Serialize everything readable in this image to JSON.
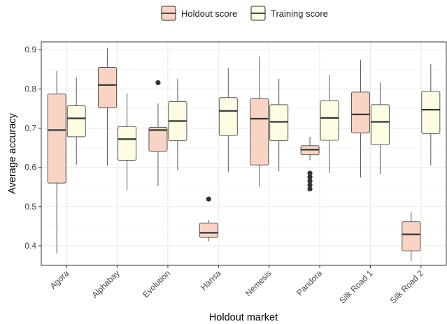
{
  "chart_data": {
    "type": "box",
    "xlabel": "Holdout market",
    "ylabel": "Average accuracy",
    "ylim": [
      0.35,
      0.92
    ],
    "yticks": [
      0.4,
      0.5,
      0.6,
      0.7,
      0.8,
      0.9
    ],
    "ytick_labels": [
      "0.4",
      "0.5",
      "0.6",
      "0.7",
      "0.8",
      "0.9"
    ],
    "grid": true,
    "legend_position": "top",
    "categories": [
      "Agora",
      "Alphabay",
      "Evolution",
      "Hansa",
      "Nemesis",
      "Pandora",
      "Silk Road 1",
      "Silk Road 2"
    ],
    "series": [
      {
        "name": "Holdout score",
        "fill": "#f9d4c5",
        "boxes": [
          {
            "min": 0.38,
            "q1": 0.56,
            "median": 0.695,
            "q3": 0.787,
            "max": 0.846,
            "outliers": []
          },
          {
            "min": 0.604,
            "q1": 0.752,
            "median": 0.81,
            "q3": 0.855,
            "max": 0.905,
            "outliers": []
          },
          {
            "min": 0.553,
            "q1": 0.641,
            "median": 0.695,
            "q3": 0.702,
            "max": 0.763,
            "outliers": [
              0.816
            ]
          },
          {
            "min": 0.412,
            "q1": 0.421,
            "median": 0.433,
            "q3": 0.458,
            "max": 0.466,
            "outliers": [
              0.519
            ]
          },
          {
            "min": 0.551,
            "q1": 0.606,
            "median": 0.724,
            "q3": 0.775,
            "max": 0.883,
            "outliers": []
          },
          {
            "min": 0.618,
            "q1": 0.632,
            "median": 0.645,
            "q3": 0.655,
            "max": 0.678,
            "outliers": [
              0.585,
              0.575,
              0.565,
              0.555,
              0.545
            ]
          },
          {
            "min": 0.574,
            "q1": 0.688,
            "median": 0.735,
            "q3": 0.792,
            "max": 0.874,
            "outliers": []
          },
          {
            "min": 0.361,
            "q1": 0.387,
            "median": 0.429,
            "q3": 0.461,
            "max": 0.486,
            "outliers": []
          }
        ]
      },
      {
        "name": "Training score",
        "fill": "#fefde3",
        "boxes": [
          {
            "min": 0.607,
            "q1": 0.678,
            "median": 0.725,
            "q3": 0.757,
            "max": 0.83,
            "outliers": []
          },
          {
            "min": 0.541,
            "q1": 0.618,
            "median": 0.672,
            "q3": 0.704,
            "max": 0.789,
            "outliers": []
          },
          {
            "min": 0.592,
            "q1": 0.668,
            "median": 0.718,
            "q3": 0.768,
            "max": 0.826,
            "outliers": []
          },
          {
            "min": 0.588,
            "q1": 0.681,
            "median": 0.744,
            "q3": 0.778,
            "max": 0.853,
            "outliers": []
          },
          {
            "min": 0.59,
            "q1": 0.668,
            "median": 0.716,
            "q3": 0.76,
            "max": 0.826,
            "outliers": []
          },
          {
            "min": 0.586,
            "q1": 0.669,
            "median": 0.726,
            "q3": 0.77,
            "max": 0.835,
            "outliers": []
          },
          {
            "min": 0.583,
            "q1": 0.658,
            "median": 0.716,
            "q3": 0.76,
            "max": 0.817,
            "outliers": []
          },
          {
            "min": 0.605,
            "q1": 0.686,
            "median": 0.747,
            "q3": 0.794,
            "max": 0.863,
            "outliers": []
          }
        ]
      }
    ]
  },
  "colors": {
    "panel_background": "#ffffff",
    "grid_major": "#e6e6e6",
    "grid_minor": "#f2f2f2",
    "box_stroke": "#555555",
    "median": "#333333",
    "outlier": "#333333"
  }
}
